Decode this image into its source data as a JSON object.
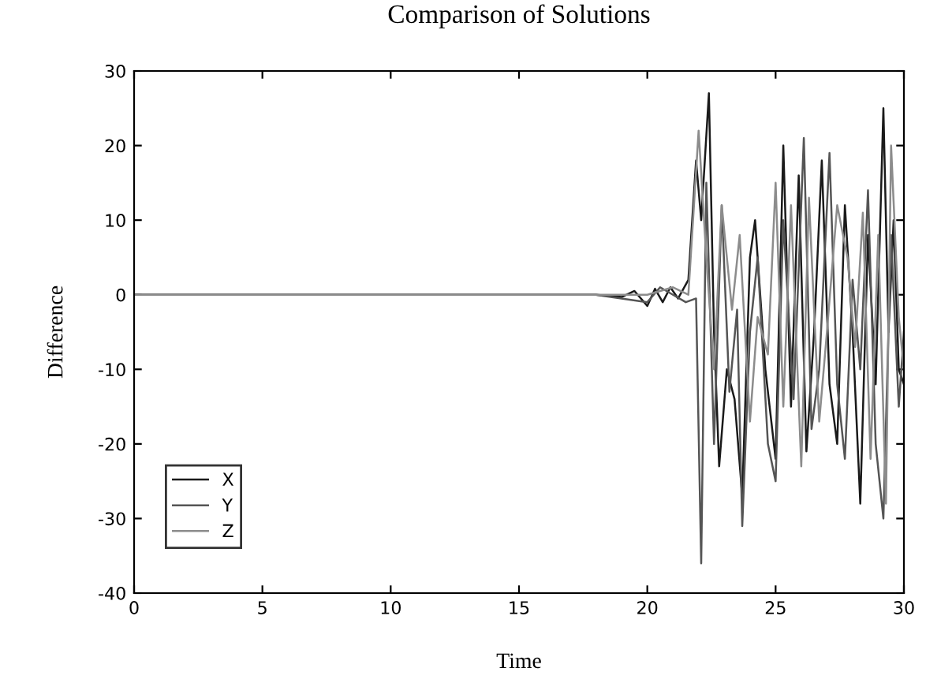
{
  "chart_data": {
    "type": "line",
    "title": "Comparison of Solutions",
    "xlabel": "Time",
    "ylabel": "Difference",
    "xlim": [
      0,
      30
    ],
    "xticks": [
      0,
      5,
      10,
      15,
      20,
      25,
      30
    ],
    "ylim": [
      -40,
      30
    ],
    "yticks": [
      -40,
      -30,
      -20,
      -10,
      0,
      10,
      20,
      30
    ],
    "grid": false,
    "legend": "bottom left",
    "line_style": "solid",
    "marker": "none",
    "series": [
      {
        "name": "X",
        "color": "#1a1a1a",
        "x": [
          0,
          17,
          18,
          19,
          19.5,
          20,
          20.3,
          20.6,
          20.9,
          21.2,
          21.6,
          21.9,
          22.1,
          22.4,
          22.6,
          22.8,
          23.1,
          23.4,
          23.7,
          24,
          24.2,
          24.6,
          25,
          25.3,
          25.6,
          25.9,
          26.2,
          26.5,
          26.8,
          27.1,
          27.4,
          27.7,
          28,
          28.3,
          28.6,
          28.9,
          29.2,
          29.4,
          29.6,
          29.8,
          30
        ],
        "values": [
          0,
          0,
          0,
          -0.3,
          0.5,
          -1.5,
          0.8,
          -1,
          1,
          -0.5,
          2,
          18,
          10,
          27,
          -5,
          -23,
          -10,
          -14,
          -27,
          5,
          10,
          -10,
          -22,
          20,
          -15,
          16,
          -21,
          -5,
          18,
          -12,
          -20,
          12,
          -5,
          -28,
          8,
          -12,
          25,
          -5,
          10,
          -10,
          -12
        ]
      },
      {
        "name": "Y",
        "color": "#555555",
        "x": [
          0,
          18,
          20,
          20.5,
          21,
          21.5,
          21.9,
          22.1,
          22.3,
          22.6,
          22.9,
          23.2,
          23.5,
          23.7,
          24,
          24.3,
          24.7,
          25,
          25.3,
          25.7,
          26.1,
          26.4,
          26.7,
          27.1,
          27.4,
          27.7,
          28,
          28.3,
          28.6,
          28.9,
          29.2,
          29.5,
          29.8,
          30
        ],
        "values": [
          0,
          0,
          -1,
          1,
          0,
          -1,
          -0.5,
          -36,
          15,
          -20,
          12,
          -13,
          -2,
          -31,
          -5,
          5,
          -20,
          -25,
          10,
          -14,
          21,
          -18,
          -10,
          19,
          -12,
          -22,
          2,
          -10,
          14,
          -20,
          -30,
          8,
          -15,
          -5
        ]
      },
      {
        "name": "Z",
        "color": "#8c8c8c",
        "x": [
          0,
          20,
          21,
          21.6,
          22,
          22.3,
          22.6,
          22.9,
          23.3,
          23.6,
          24,
          24.3,
          24.7,
          25,
          25.3,
          25.6,
          26,
          26.3,
          26.7,
          27,
          27.4,
          27.8,
          28.1,
          28.4,
          28.7,
          29,
          29.3,
          29.5,
          29.8,
          30
        ],
        "values": [
          0,
          0,
          1,
          0,
          22,
          5,
          -10,
          12,
          -2,
          8,
          -17,
          -3,
          -8,
          15,
          -15,
          12,
          -23,
          13,
          -17,
          -5,
          12,
          5,
          -7,
          11,
          -22,
          8,
          -28,
          20,
          -3,
          -10
        ]
      }
    ]
  }
}
